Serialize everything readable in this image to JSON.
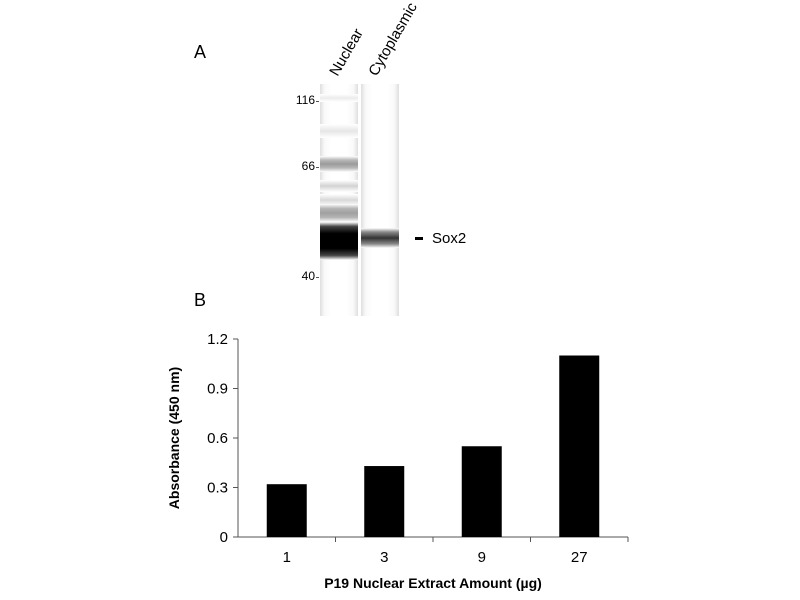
{
  "panel_a": {
    "label": "A",
    "lanes": [
      "Nuclear",
      "Cytoplasmic"
    ],
    "mw_markers": [
      "116",
      "66",
      "40"
    ],
    "band_label": "Sox2"
  },
  "panel_b": {
    "label": "B"
  },
  "chart_data": {
    "type": "bar",
    "categories": [
      "1",
      "3",
      "9",
      "27"
    ],
    "values": [
      0.32,
      0.43,
      0.55,
      1.1
    ],
    "title": "",
    "xlabel": "P19 Nuclear Extract Amount (µg)",
    "ylabel": "Absorbance (450 nm)",
    "ylim": [
      0,
      1.2
    ],
    "yticks": [
      "0",
      "0.3",
      "0.6",
      "0.9",
      "1.2"
    ],
    "grid": false,
    "bar_color": "#000000"
  }
}
